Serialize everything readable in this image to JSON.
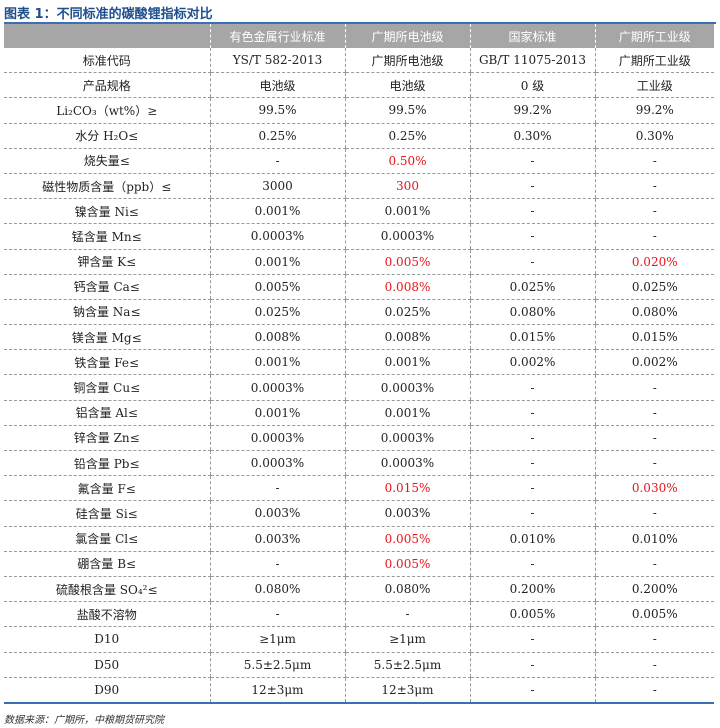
{
  "title": "图表 1：不同标准的碳酸锂指标对比",
  "headers": [
    "",
    "有色金属行业标准",
    "广期所电池级",
    "国家标准",
    "广期所工业级"
  ],
  "rows": [
    {
      "label": "标准代码",
      "v": [
        "YS/T 582-2013",
        "广期所电池级",
        "GB/T 11075-2013",
        "广期所工业级"
      ],
      "red": []
    },
    {
      "label": "产品规格",
      "v": [
        "电池级",
        "电池级",
        "0 级",
        "工业级"
      ],
      "red": []
    },
    {
      "label": "Li₂CO₃（wt%）≥",
      "v": [
        "99.5%",
        "99.5%",
        "99.2%",
        "99.2%"
      ],
      "red": []
    },
    {
      "label": "水分 H₂O≤",
      "v": [
        "0.25%",
        "0.25%",
        "0.30%",
        "0.30%"
      ],
      "red": []
    },
    {
      "label": "烧失量≤",
      "v": [
        "-",
        "0.50%",
        "-",
        "-"
      ],
      "red": [
        1
      ]
    },
    {
      "label": "磁性物质含量（ppb）≤",
      "v": [
        "3000",
        "300",
        "-",
        "-"
      ],
      "red": [
        1
      ]
    },
    {
      "label": "镍含量 Ni≤",
      "v": [
        "0.001%",
        "0.001%",
        "-",
        "-"
      ],
      "red": []
    },
    {
      "label": "锰含量 Mn≤",
      "v": [
        "0.0003%",
        "0.0003%",
        "-",
        "-"
      ],
      "red": []
    },
    {
      "label": "钾含量 K≤",
      "v": [
        "0.001%",
        "0.005%",
        "-",
        "0.020%"
      ],
      "red": [
        1,
        3
      ]
    },
    {
      "label": "钙含量 Ca≤",
      "v": [
        "0.005%",
        "0.008%",
        "0.025%",
        "0.025%"
      ],
      "red": [
        1
      ]
    },
    {
      "label": "钠含量 Na≤",
      "v": [
        "0.025%",
        "0.025%",
        "0.080%",
        "0.080%"
      ],
      "red": []
    },
    {
      "label": "镁含量 Mg≤",
      "v": [
        "0.008%",
        "0.008%",
        "0.015%",
        "0.015%"
      ],
      "red": []
    },
    {
      "label": "铁含量 Fe≤",
      "v": [
        "0.001%",
        "0.001%",
        "0.002%",
        "0.002%"
      ],
      "red": []
    },
    {
      "label": "铜含量 Cu≤",
      "v": [
        "0.0003%",
        "0.0003%",
        "-",
        "-"
      ],
      "red": []
    },
    {
      "label": "铝含量 Al≤",
      "v": [
        "0.001%",
        "0.001%",
        "-",
        "-"
      ],
      "red": []
    },
    {
      "label": "锌含量 Zn≤",
      "v": [
        "0.0003%",
        "0.0003%",
        "-",
        "-"
      ],
      "red": []
    },
    {
      "label": "铅含量 Pb≤",
      "v": [
        "0.0003%",
        "0.0003%",
        "-",
        "-"
      ],
      "red": []
    },
    {
      "label": "氟含量 F≤",
      "v": [
        "-",
        "0.015%",
        "-",
        "0.030%"
      ],
      "red": [
        1,
        3
      ]
    },
    {
      "label": "硅含量 Si≤",
      "v": [
        "0.003%",
        "0.003%",
        "-",
        "-"
      ],
      "red": []
    },
    {
      "label": "氯含量 Cl≤",
      "v": [
        "0.003%",
        "0.005%",
        "0.010%",
        "0.010%"
      ],
      "red": [
        1
      ]
    },
    {
      "label": "硼含量 B≤",
      "v": [
        "-",
        "0.005%",
        "-",
        "-"
      ],
      "red": [
        1
      ]
    },
    {
      "label": "硫酸根含量 SO₄²≤",
      "v": [
        "0.080%",
        "0.080%",
        "0.200%",
        "0.200%"
      ],
      "red": []
    },
    {
      "label": "盐酸不溶物",
      "v": [
        "-",
        "-",
        "0.005%",
        "0.005%"
      ],
      "red": []
    },
    {
      "label": "D10",
      "v": [
        "≥1μm",
        "≥1μm",
        "-",
        "-"
      ],
      "red": []
    },
    {
      "label": "D50",
      "v": [
        "5.5±2.5μm",
        "5.5±2.5μm",
        "-",
        "-"
      ],
      "red": []
    },
    {
      "label": "D90",
      "v": [
        "12±3μm",
        "12±3μm",
        "-",
        "-"
      ],
      "red": []
    }
  ],
  "source": "数据来源：广期所，中粮期货研究院",
  "colors": {
    "accent": "#3c6eb4",
    "header_bg": "#a6a6a6",
    "highlight": "#e8141b"
  }
}
